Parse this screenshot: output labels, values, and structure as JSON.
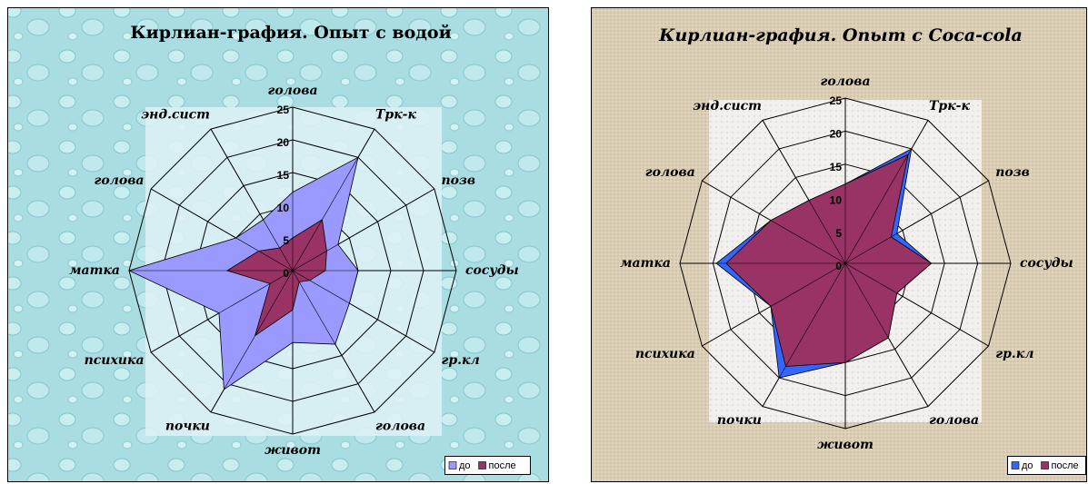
{
  "chart_data": [
    {
      "type": "radar",
      "title": "Кирлиан-графия. Опыт с водой",
      "categories": [
        "голова",
        "Трк-к",
        "позв",
        "сосуды",
        "гр.кл",
        "голова",
        "живот",
        "почки",
        "психика",
        "матка",
        "голова",
        "энд.сист"
      ],
      "series": [
        {
          "name": "до",
          "color": "#9999ff",
          "values": [
            12,
            20,
            8,
            10,
            10,
            13,
            11,
            21,
            13,
            25,
            10,
            9
          ]
        },
        {
          "name": "после",
          "color": "#993366",
          "values": [
            5,
            9,
            6,
            5,
            3,
            2,
            6,
            11.5,
            4,
            10,
            6,
            4
          ]
        }
      ],
      "ylim": [
        0,
        25
      ],
      "yticks": [
        0,
        5,
        10,
        15,
        20,
        25
      ],
      "grid": true,
      "legend": "bottom-right"
    },
    {
      "type": "radar",
      "title": "Кирлиан-графия. Опыт с Coca-cola",
      "categories": [
        "голова",
        "Трк-к",
        "позв",
        "сосуды",
        "гр.кл",
        "голова",
        "живот",
        "почки",
        "психика",
        "матка",
        "голова",
        "энд.сист"
      ],
      "series": [
        {
          "name": "до",
          "color": "#3366ff",
          "values": [
            12,
            20,
            9,
            13,
            9,
            13,
            15,
            20,
            13,
            19.5,
            13,
            11
          ]
        },
        {
          "name": "после",
          "color": "#993366",
          "values": [
            12,
            19,
            8,
            13,
            9,
            13,
            15,
            18,
            13,
            18,
            13,
            11
          ]
        }
      ],
      "ylim": [
        0,
        25
      ],
      "yticks": [
        0,
        5,
        10,
        15,
        20,
        25
      ],
      "grid": true,
      "legend": "bottom-right"
    }
  ]
}
